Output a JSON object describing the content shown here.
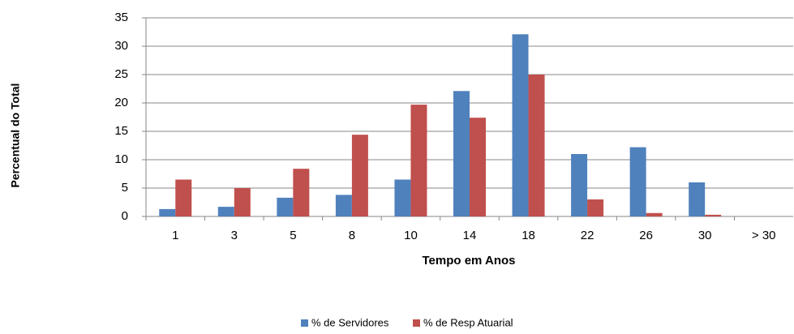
{
  "chart_data": {
    "type": "bar",
    "x_label": "Tempo em Anos",
    "y_label": "Percentual do Total",
    "categories": [
      "1",
      "3",
      "5",
      "8",
      "10",
      "14",
      "18",
      "22",
      "26",
      "30",
      "> 30"
    ],
    "series": [
      {
        "name": "% de Servidores",
        "color": "#4f81bd",
        "values": [
          1.3,
          1.7,
          3.3,
          3.8,
          6.5,
          22.1,
          32.1,
          11,
          12.2,
          6,
          0
        ]
      },
      {
        "name": "% de Resp Atuarial",
        "color": "#c0504d",
        "values": [
          6.5,
          5,
          8.4,
          14.4,
          19.7,
          17.4,
          25,
          3,
          0.6,
          0.3,
          0
        ]
      }
    ],
    "ylim": [
      0,
      35
    ],
    "yticks": [
      0,
      5,
      10,
      15,
      20,
      25,
      30,
      35
    ],
    "grid": true,
    "legend": "bottom"
  }
}
